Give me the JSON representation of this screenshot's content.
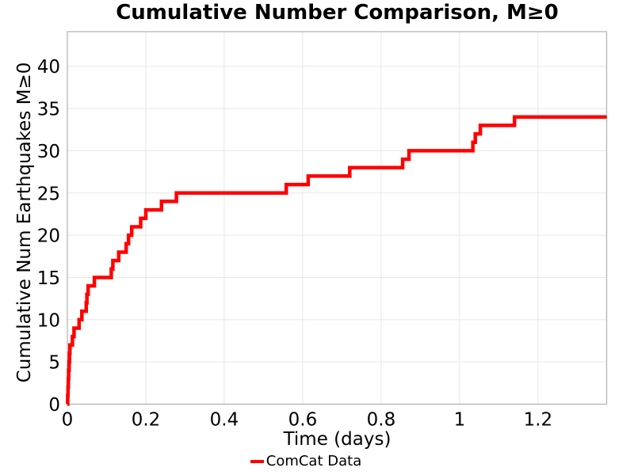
{
  "chart_data": {
    "type": "line",
    "step": "post",
    "title": "Cumulative Number Comparison, M≥0",
    "xlabel": "Time (days)",
    "ylabel": "Cumulative Num Earthquakes M≥0",
    "x_ticks": [
      0,
      0.2,
      0.4,
      0.6,
      0.8,
      1,
      1.2
    ],
    "x_tick_labels": [
      "0",
      "0.2",
      "0.4",
      "0.6",
      "0.8",
      "1",
      "1.2"
    ],
    "y_ticks": [
      0,
      5,
      10,
      15,
      20,
      25,
      30,
      35,
      40
    ],
    "y_tick_labels": [
      "0",
      "5",
      "10",
      "15",
      "20",
      "25",
      "30",
      "35",
      "40"
    ],
    "xlim": [
      0,
      1.375
    ],
    "ylim": [
      0,
      44.1
    ],
    "grid": true,
    "legend_position": "bottom-center-outside",
    "series": [
      {
        "name": "ComCat Data",
        "color": "#ff0000",
        "line_width": 4.5,
        "start": [
          0,
          0
        ],
        "event_times_days": [
          0.0008,
          0.0016,
          0.0024,
          0.0032,
          0.0045,
          0.0055,
          0.0065,
          0.013,
          0.017,
          0.03,
          0.037,
          0.048,
          0.05,
          0.053,
          0.069,
          0.112,
          0.116,
          0.131,
          0.15,
          0.156,
          0.164,
          0.187,
          0.2,
          0.24,
          0.278,
          0.558,
          0.614,
          0.72,
          0.855,
          0.871,
          1.034,
          1.04,
          1.053,
          1.14
        ],
        "cumulative_final": 34,
        "end_x": 1.375
      }
    ]
  },
  "colors": {
    "background": "#ffffff",
    "grid": "#e7e7e7",
    "plot_border": "#b0b0b0",
    "text": "#000000",
    "series_red": "#ff0000"
  }
}
